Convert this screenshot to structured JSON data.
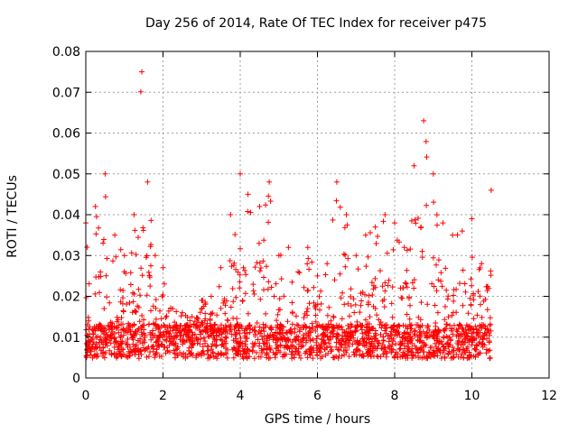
{
  "chart_data": {
    "type": "scatter",
    "title": "Day 256 of 2014, Rate Of TEC Index for receiver p475",
    "xlabel": "GPS time / hours",
    "ylabel": "ROTI / TECUs",
    "xlim": [
      0,
      12
    ],
    "ylim": [
      0,
      0.08
    ],
    "xticks": [
      0,
      2,
      4,
      6,
      8,
      10,
      12
    ],
    "yticks": [
      0,
      0.01,
      0.02,
      0.03,
      0.04,
      0.05,
      0.06,
      0.07,
      0.08
    ],
    "xtick_labels": [
      "0",
      "2",
      "4",
      "6",
      "8",
      "10",
      "12"
    ],
    "ytick_labels": [
      "0",
      "0.01",
      "0.02",
      "0.03",
      "0.04",
      "0.05",
      "0.06",
      "0.07",
      "0.08"
    ],
    "grid": true,
    "marker": "+",
    "series_color": "#ff0000",
    "envelope": {
      "description": "approximate upper envelope of ROTI values vs time (hours)",
      "x": [
        0,
        0.25,
        0.5,
        0.75,
        1.0,
        1.25,
        1.45,
        1.6,
        1.8,
        2.0,
        2.25,
        2.5,
        2.75,
        3.0,
        3.25,
        3.5,
        3.75,
        4.0,
        4.2,
        4.5,
        4.75,
        5.0,
        5.25,
        5.5,
        5.75,
        6.0,
        6.25,
        6.5,
        6.75,
        7.0,
        7.25,
        7.5,
        7.75,
        8.0,
        8.25,
        8.5,
        8.75,
        9.0,
        9.25,
        9.5,
        9.75,
        10.0,
        10.25,
        10.5
      ],
      "y": [
        0.038,
        0.042,
        0.05,
        0.035,
        0.03,
        0.04,
        0.075,
        0.048,
        0.03,
        0.027,
        0.017,
        0.016,
        0.015,
        0.019,
        0.02,
        0.027,
        0.04,
        0.05,
        0.045,
        0.042,
        0.048,
        0.03,
        0.032,
        0.026,
        0.032,
        0.025,
        0.028,
        0.048,
        0.04,
        0.03,
        0.035,
        0.037,
        0.04,
        0.038,
        0.032,
        0.052,
        0.063,
        0.05,
        0.038,
        0.035,
        0.036,
        0.039,
        0.028,
        0.046
      ]
    },
    "baseline": 0.009,
    "spread": 0.006,
    "point_count": 2000
  }
}
